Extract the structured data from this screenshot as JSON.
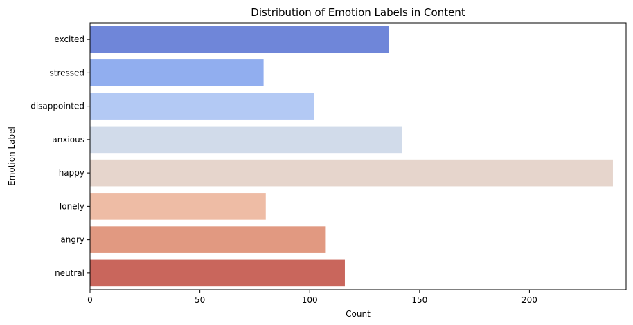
{
  "chart_data": {
    "type": "bar",
    "orientation": "horizontal",
    "title": "Distribution of Emotion Labels in Content",
    "xlabel": "Count",
    "ylabel": "Emotion Label",
    "xlim": [
      0,
      244
    ],
    "xticks": [
      0,
      50,
      100,
      150,
      200
    ],
    "grid": false,
    "categories": [
      "excited",
      "stressed",
      "disappointed",
      "anxious",
      "happy",
      "lonely",
      "angry",
      "neutral"
    ],
    "values": [
      136,
      79,
      102,
      142,
      238,
      80,
      107,
      116
    ],
    "colors": [
      "#6f86d9",
      "#91aeef",
      "#b3c9f4",
      "#d1dbea",
      "#e6d5cc",
      "#eebca5",
      "#e19981",
      "#c9665c"
    ]
  }
}
